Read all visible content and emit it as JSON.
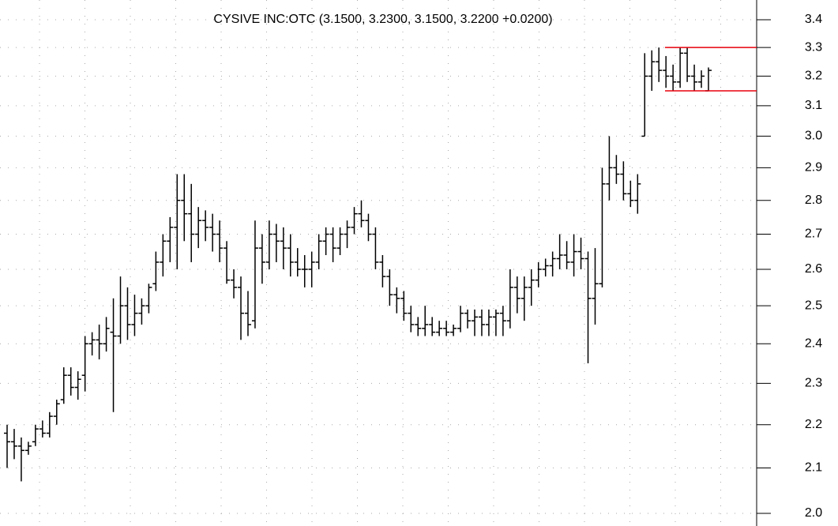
{
  "chart_data": {
    "type": "ohlc",
    "subtitle": "CYSIVE INC:OTC (3.1500, 3.2300, 3.1500, 3.2200 +0.0200)",
    "log_scale": true,
    "grid": true,
    "color": "#000000",
    "ylim": [
      1.973,
      3.473
    ],
    "yticks": [
      {
        "value": 2.0,
        "label": "2.0"
      },
      2.1,
      2.2,
      2.3,
      2.4,
      2.5,
      2.6,
      2.7,
      2.8,
      2.9,
      {
        "value": 3.0,
        "label": "3.0"
      },
      3.1,
      3.2,
      3.3,
      3.4
    ],
    "levels": [
      {
        "value": 3.3,
        "color": "#e8000b"
      },
      {
        "value": 3.15,
        "color": "#e8000b"
      }
    ],
    "open": [
      2.18,
      2.16,
      2.15,
      2.14,
      2.16,
      2.19,
      2.18,
      2.22,
      2.26,
      2.32,
      2.29,
      2.32,
      2.4,
      2.41,
      2.4,
      2.43,
      2.42,
      2.5,
      2.45,
      2.48,
      2.5,
      2.56,
      2.62,
      2.68,
      2.72,
      2.8,
      2.76,
      2.7,
      2.74,
      2.72,
      2.7,
      2.66,
      2.57,
      2.55,
      2.48,
      2.46,
      2.66,
      2.62,
      2.7,
      2.68,
      2.66,
      2.62,
      2.6,
      2.6,
      2.62,
      2.68,
      2.7,
      2.66,
      2.7,
      2.72,
      2.76,
      2.74,
      2.7,
      2.62,
      2.58,
      2.53,
      2.52,
      2.48,
      2.45,
      2.44,
      2.45,
      2.43,
      2.44,
      2.43,
      2.44,
      2.48,
      2.46,
      2.47,
      2.45,
      2.47,
      2.48,
      2.46,
      2.55,
      2.52,
      2.55,
      2.57,
      2.6,
      2.61,
      2.63,
      2.64,
      2.62,
      2.65,
      2.63,
      2.52,
      2.56,
      2.85,
      2.9,
      2.88,
      2.82,
      2.8,
      3.0,
      3.2,
      3.25,
      3.22,
      3.2,
      3.18,
      3.28,
      3.2,
      3.18,
      3.15
    ],
    "high": [
      2.2,
      2.19,
      2.17,
      2.16,
      2.2,
      2.21,
      2.23,
      2.26,
      2.34,
      2.34,
      2.33,
      2.42,
      2.43,
      2.45,
      2.47,
      2.52,
      2.58,
      2.55,
      2.53,
      2.52,
      2.56,
      2.65,
      2.7,
      2.75,
      2.88,
      2.88,
      2.85,
      2.78,
      2.77,
      2.76,
      2.74,
      2.68,
      2.6,
      2.58,
      2.54,
      2.74,
      2.7,
      2.74,
      2.73,
      2.72,
      2.7,
      2.66,
      2.64,
      2.65,
      2.7,
      2.72,
      2.72,
      2.72,
      2.74,
      2.78,
      2.8,
      2.76,
      2.72,
      2.64,
      2.6,
      2.55,
      2.54,
      2.5,
      2.47,
      2.5,
      2.47,
      2.46,
      2.46,
      2.45,
      2.5,
      2.49,
      2.49,
      2.49,
      2.49,
      2.49,
      2.5,
      2.6,
      2.58,
      2.58,
      2.6,
      2.62,
      2.63,
      2.65,
      2.7,
      2.68,
      2.7,
      2.69,
      2.65,
      2.66,
      2.9,
      3.0,
      2.94,
      2.92,
      2.86,
      2.88,
      3.28,
      3.29,
      3.3,
      3.27,
      3.24,
      3.3,
      3.3,
      3.24,
      3.22,
      3.23
    ],
    "low": [
      2.1,
      2.12,
      2.07,
      2.13,
      2.15,
      2.17,
      2.17,
      2.2,
      2.25,
      2.27,
      2.26,
      2.28,
      2.37,
      2.36,
      2.38,
      2.23,
      2.4,
      2.41,
      2.42,
      2.45,
      2.48,
      2.54,
      2.58,
      2.62,
      2.6,
      2.68,
      2.62,
      2.66,
      2.68,
      2.65,
      2.62,
      2.56,
      2.52,
      2.41,
      2.42,
      2.44,
      2.56,
      2.6,
      2.62,
      2.6,
      2.58,
      2.58,
      2.55,
      2.55,
      2.6,
      2.64,
      2.62,
      2.64,
      2.66,
      2.7,
      2.72,
      2.68,
      2.6,
      2.55,
      2.5,
      2.48,
      2.46,
      2.43,
      2.42,
      2.42,
      2.42,
      2.42,
      2.42,
      2.42,
      2.43,
      2.44,
      2.42,
      2.42,
      2.42,
      2.42,
      2.42,
      2.44,
      2.48,
      2.46,
      2.5,
      2.55,
      2.58,
      2.58,
      2.6,
      2.6,
      2.58,
      2.6,
      2.35,
      2.45,
      2.55,
      2.8,
      2.85,
      2.8,
      2.78,
      2.76,
      3.0,
      3.15,
      3.18,
      3.16,
      3.15,
      3.16,
      3.18,
      3.15,
      3.16,
      3.15
    ],
    "close": [
      2.16,
      2.15,
      2.14,
      2.15,
      2.19,
      2.18,
      2.22,
      2.25,
      2.32,
      2.29,
      2.31,
      2.4,
      2.41,
      2.4,
      2.44,
      2.42,
      2.5,
      2.45,
      2.48,
      2.5,
      2.55,
      2.62,
      2.68,
      2.72,
      2.8,
      2.76,
      2.7,
      2.74,
      2.72,
      2.7,
      2.66,
      2.57,
      2.55,
      2.48,
      2.45,
      2.66,
      2.62,
      2.7,
      2.68,
      2.66,
      2.62,
      2.6,
      2.6,
      2.62,
      2.68,
      2.7,
      2.66,
      2.7,
      2.72,
      2.76,
      2.74,
      2.7,
      2.62,
      2.58,
      2.53,
      2.52,
      2.48,
      2.45,
      2.44,
      2.45,
      2.43,
      2.44,
      2.43,
      2.44,
      2.48,
      2.46,
      2.47,
      2.45,
      2.47,
      2.48,
      2.46,
      2.55,
      2.52,
      2.55,
      2.57,
      2.6,
      2.61,
      2.63,
      2.64,
      2.62,
      2.65,
      2.63,
      2.52,
      2.56,
      2.85,
      2.9,
      2.88,
      2.82,
      2.8,
      2.85,
      3.2,
      3.25,
      3.22,
      3.2,
      3.18,
      3.28,
      3.2,
      3.18,
      3.2,
      3.22
    ]
  }
}
